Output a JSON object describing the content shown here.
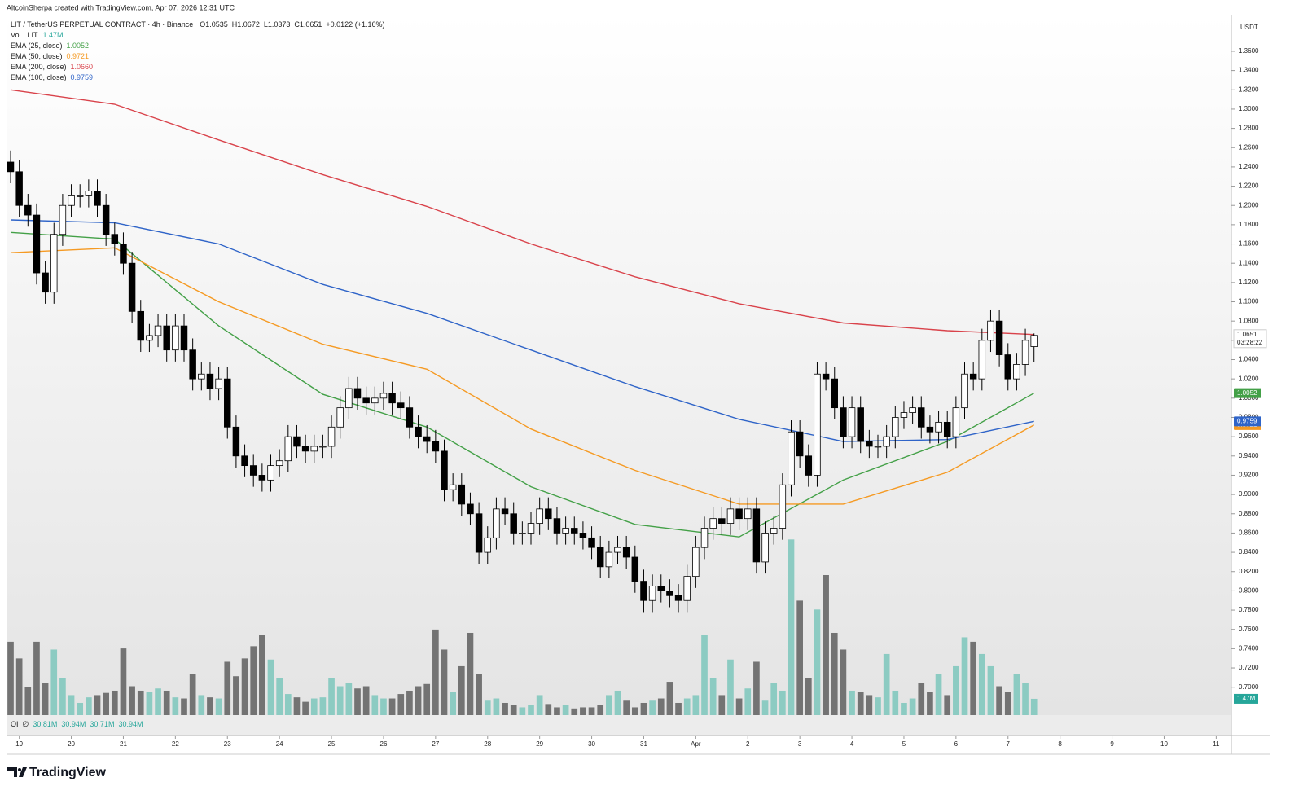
{
  "header": {
    "attribution": "AltcoinSherpa created with TradingView.com, Apr 07, 2026 12:31 UTC"
  },
  "footer": {
    "brand": "TradingView"
  },
  "chart_data": {
    "type": "candlestick",
    "symbol": "LIT / TetherUS PERPETUAL CONTRACT · 4h · Binance",
    "ohlc_keys": [
      "O",
      "H",
      "L",
      "C"
    ],
    "change": "+0.0122 (+1.16%)",
    "y_unit": "USDT",
    "countdown": "03:28:22",
    "up_color": "#ffffff",
    "down_color": "#000000",
    "open": [
      1.245,
      1.235,
      1.2,
      1.19,
      1.13,
      1.11,
      1.17,
      1.2,
      1.21,
      1.21,
      1.215,
      1.2,
      1.17,
      1.16,
      1.14,
      1.09,
      1.06,
      1.065,
      1.075,
      1.05,
      1.075,
      1.05,
      1.02,
      1.025,
      1.01,
      1.02,
      0.97,
      0.94,
      0.93,
      0.92,
      0.915,
      0.93,
      0.935,
      0.96,
      0.95,
      0.945,
      0.95,
      0.95,
      0.97,
      0.99,
      1.01,
      1,
      0.995,
      1,
      1.005,
      0.995,
      0.99,
      0.97,
      0.96,
      0.955,
      0.945,
      0.905,
      0.91,
      0.89,
      0.88,
      0.84,
      0.855,
      0.885,
      0.88,
      0.86,
      0.86,
      0.87,
      0.885,
      0.875,
      0.86,
      0.865,
      0.86,
      0.855,
      0.845,
      0.825,
      0.84,
      0.845,
      0.835,
      0.81,
      0.79,
      0.805,
      0.8,
      0.795,
      0.79,
      0.815,
      0.845,
      0.865,
      0.875,
      0.87,
      0.885,
      0.875,
      0.885,
      0.83,
      0.86,
      0.865,
      0.91,
      0.965,
      0.94,
      0.92,
      1.025,
      1.02,
      0.99,
      0.96,
      0.99,
      0.955,
      0.95,
      0.95,
      0.96,
      0.98,
      0.985,
      0.99,
      0.97,
      0.965,
      0.975,
      0.96,
      0.99,
      1.025,
      1.02,
      1.06,
      1.08,
      1.045,
      1.02,
      1.035,
      1.0535
    ],
    "high": [
      1.257,
      1.247,
      1.212,
      1.202,
      1.142,
      1.182,
      1.212,
      1.222,
      1.222,
      1.227,
      1.227,
      1.212,
      1.182,
      1.172,
      1.152,
      1.102,
      1.077,
      1.087,
      1.087,
      1.087,
      1.087,
      1.062,
      1.037,
      1.037,
      1.032,
      1.032,
      0.982,
      0.952,
      0.942,
      0.932,
      0.942,
      0.947,
      0.972,
      0.972,
      0.962,
      0.962,
      0.962,
      0.982,
      1.002,
      1.022,
      1.022,
      1.012,
      1.012,
      1.017,
      1.017,
      1.007,
      1.002,
      0.982,
      0.972,
      0.967,
      0.957,
      0.922,
      0.922,
      0.902,
      0.892,
      0.867,
      0.897,
      0.897,
      0.892,
      0.872,
      0.882,
      0.897,
      0.897,
      0.887,
      0.877,
      0.877,
      0.872,
      0.867,
      0.857,
      0.852,
      0.857,
      0.857,
      0.847,
      0.822,
      0.817,
      0.817,
      0.812,
      0.807,
      0.827,
      0.857,
      0.877,
      0.887,
      0.887,
      0.897,
      0.897,
      0.897,
      0.897,
      0.872,
      0.877,
      0.922,
      0.977,
      0.977,
      0.952,
      1.037,
      1.037,
      1.032,
      1.002,
      1.002,
      1.002,
      0.967,
      0.962,
      0.972,
      0.992,
      0.997,
      1.002,
      1.002,
      0.982,
      0.987,
      0.987,
      1.002,
      1.037,
      1.037,
      1.072,
      1.092,
      1.092,
      1.057,
      1.047,
      1.072,
      1.0672
    ],
    "low": [
      1.223,
      1.188,
      1.178,
      1.118,
      1.098,
      1.098,
      1.158,
      1.188,
      1.198,
      1.198,
      1.188,
      1.158,
      1.148,
      1.128,
      1.078,
      1.048,
      1.048,
      1.053,
      1.038,
      1.038,
      1.038,
      1.008,
      1.008,
      0.998,
      0.998,
      0.958,
      0.928,
      0.918,
      0.908,
      0.903,
      0.903,
      0.918,
      0.923,
      0.938,
      0.933,
      0.933,
      0.938,
      0.938,
      0.958,
      0.978,
      0.988,
      0.983,
      0.983,
      0.988,
      0.983,
      0.978,
      0.958,
      0.948,
      0.943,
      0.933,
      0.893,
      0.893,
      0.878,
      0.868,
      0.828,
      0.828,
      0.843,
      0.868,
      0.848,
      0.848,
      0.848,
      0.858,
      0.863,
      0.848,
      0.848,
      0.848,
      0.843,
      0.833,
      0.813,
      0.813,
      0.828,
      0.823,
      0.798,
      0.778,
      0.778,
      0.788,
      0.783,
      0.778,
      0.778,
      0.803,
      0.833,
      0.853,
      0.858,
      0.858,
      0.863,
      0.863,
      0.818,
      0.818,
      0.848,
      0.853,
      0.898,
      0.928,
      0.908,
      0.908,
      1.008,
      0.978,
      0.948,
      0.948,
      0.943,
      0.938,
      0.938,
      0.938,
      0.948,
      0.968,
      0.973,
      0.958,
      0.953,
      0.953,
      0.948,
      0.948,
      0.978,
      1.008,
      1.008,
      1.048,
      1.033,
      1.008,
      1.008,
      1.023,
      1.0373
    ],
    "close": [
      1.235,
      1.2,
      1.19,
      1.13,
      1.11,
      1.17,
      1.2,
      1.21,
      1.21,
      1.215,
      1.2,
      1.17,
      1.16,
      1.14,
      1.09,
      1.06,
      1.065,
      1.075,
      1.05,
      1.075,
      1.05,
      1.02,
      1.025,
      1.01,
      1.02,
      0.97,
      0.94,
      0.93,
      0.92,
      0.915,
      0.93,
      0.935,
      0.96,
      0.95,
      0.945,
      0.95,
      0.95,
      0.97,
      0.99,
      1.01,
      1,
      0.995,
      1,
      1.005,
      0.995,
      0.99,
      0.97,
      0.96,
      0.955,
      0.945,
      0.905,
      0.91,
      0.89,
      0.88,
      0.84,
      0.855,
      0.885,
      0.88,
      0.86,
      0.86,
      0.87,
      0.885,
      0.875,
      0.86,
      0.865,
      0.86,
      0.855,
      0.845,
      0.825,
      0.84,
      0.845,
      0.835,
      0.81,
      0.79,
      0.805,
      0.8,
      0.795,
      0.79,
      0.815,
      0.845,
      0.865,
      0.875,
      0.87,
      0.885,
      0.875,
      0.885,
      0.83,
      0.86,
      0.865,
      0.91,
      0.965,
      0.94,
      0.92,
      1.025,
      1.02,
      0.99,
      0.96,
      0.99,
      0.955,
      0.95,
      0.95,
      0.96,
      0.98,
      0.985,
      0.99,
      0.97,
      0.965,
      0.975,
      0.96,
      0.99,
      1.025,
      1.02,
      1.06,
      1.08,
      1.045,
      1.02,
      1.035,
      1.06,
      1.0651
    ],
    "ylim": [
      0.671,
      1.398
    ],
    "yticks": [
      {
        "value": 1.36,
        "label": "1.3600"
      },
      {
        "value": 1.34,
        "label": "1.3400"
      },
      {
        "value": 1.32,
        "label": "1.3200"
      },
      {
        "value": 1.3,
        "label": "1.3000"
      },
      {
        "value": 1.28,
        "label": "1.2800"
      },
      {
        "value": 1.26,
        "label": "1.2600"
      },
      {
        "value": 1.24,
        "label": "1.2400"
      },
      {
        "value": 1.22,
        "label": "1.2200"
      },
      {
        "value": 1.2,
        "label": "1.2000"
      },
      {
        "value": 1.18,
        "label": "1.1800"
      },
      {
        "value": 1.16,
        "label": "1.1600"
      },
      {
        "value": 1.14,
        "label": "1.1400"
      },
      {
        "value": 1.12,
        "label": "1.1200"
      },
      {
        "value": 1.1,
        "label": "1.1000"
      },
      {
        "value": 1.08,
        "label": "1.0800"
      },
      {
        "value": 1.06,
        "label": "1.0600"
      },
      {
        "value": 1.04,
        "label": "1.0400"
      },
      {
        "value": 1.02,
        "label": "1.0200"
      },
      {
        "value": 1,
        "label": "1.0000"
      },
      {
        "value": 0.98,
        "label": "0.9800"
      },
      {
        "value": 0.96,
        "label": "0.9600"
      },
      {
        "value": 0.94,
        "label": "0.9400"
      },
      {
        "value": 0.92,
        "label": "0.9200"
      },
      {
        "value": 0.9,
        "label": "0.9000"
      },
      {
        "value": 0.88,
        "label": "0.8800"
      },
      {
        "value": 0.86,
        "label": "0.8600"
      },
      {
        "value": 0.84,
        "label": "0.8400"
      },
      {
        "value": 0.82,
        "label": "0.8200"
      },
      {
        "value": 0.8,
        "label": "0.8000"
      },
      {
        "value": 0.78,
        "label": "0.7800"
      },
      {
        "value": 0.76,
        "label": "0.7600"
      },
      {
        "value": 0.74,
        "label": "0.7400"
      },
      {
        "value": 0.72,
        "label": "0.7200"
      },
      {
        "value": 0.7,
        "label": "0.7000"
      }
    ],
    "xlim": [
      -0.47,
      140.75
    ],
    "xticks": [
      {
        "value": 1,
        "label": "19"
      },
      {
        "value": 7,
        "label": "20"
      },
      {
        "value": 13,
        "label": "21"
      },
      {
        "value": 19,
        "label": "22"
      },
      {
        "value": 25,
        "label": "23"
      },
      {
        "value": 31,
        "label": "24"
      },
      {
        "value": 37,
        "label": "25"
      },
      {
        "value": 43,
        "label": "26"
      },
      {
        "value": 49,
        "label": "27"
      },
      {
        "value": 55,
        "label": "28"
      },
      {
        "value": 61,
        "label": "29"
      },
      {
        "value": 67,
        "label": "30"
      },
      {
        "value": 73,
        "label": "31"
      },
      {
        "value": 79,
        "label": "Apr"
      },
      {
        "value": 85,
        "label": "2"
      },
      {
        "value": 91,
        "label": "3"
      },
      {
        "value": 97,
        "label": "4"
      },
      {
        "value": 103,
        "label": "5"
      },
      {
        "value": 109,
        "label": "6"
      },
      {
        "value": 115,
        "label": "7"
      },
      {
        "value": 121,
        "label": "8"
      },
      {
        "value": 127,
        "label": "9"
      },
      {
        "value": 133,
        "label": "10"
      },
      {
        "value": 139,
        "label": "11"
      }
    ],
    "ema": [
      {
        "name": "EMA (25, close)",
        "color": "#43a047",
        "last_label": "1.0052",
        "x": [
          0,
          12,
          24,
          36,
          48,
          60,
          72,
          84,
          96,
          108,
          118
        ],
        "values": [
          1.172,
          1.165,
          1.075,
          1.004,
          0.97,
          0.908,
          0.869,
          0.856,
          0.915,
          0.955,
          1.0052
        ]
      },
      {
        "name": "EMA (50, close)",
        "color": "#f59a23",
        "last_label": "0.9721",
        "x": [
          0,
          12,
          24,
          36,
          48,
          60,
          72,
          84,
          96,
          108,
          118
        ],
        "values": [
          1.151,
          1.156,
          1.1,
          1.056,
          1.03,
          0.968,
          0.925,
          0.89,
          0.89,
          0.923,
          0.9721
        ]
      },
      {
        "name": "EMA (200, close)",
        "color": "#d9434b",
        "last_label": "1.0660",
        "x": [
          0,
          12,
          24,
          36,
          48,
          60,
          72,
          84,
          96,
          108,
          118
        ],
        "values": [
          1.32,
          1.305,
          1.268,
          1.232,
          1.199,
          1.16,
          1.126,
          1.098,
          1.078,
          1.07,
          1.066
        ]
      },
      {
        "name": "EMA (100, close)",
        "color": "#2f64c8",
        "last_label": "0.9759",
        "x": [
          0,
          12,
          24,
          36,
          48,
          60,
          72,
          84,
          96,
          108,
          118
        ],
        "values": [
          1.185,
          1.182,
          1.16,
          1.118,
          1.088,
          1.05,
          1.012,
          0.978,
          0.955,
          0.957,
          0.9759
        ]
      }
    ],
    "volume": {
      "name": "Vol · LIT",
      "last_label": "1.47M",
      "up_color": "#8ccbc2",
      "down_color": "#737373",
      "ylim": [
        0,
        63
      ],
      "values": [
        6.6,
        5.1,
        2.5,
        6.6,
        2.9,
        5.9,
        3.3,
        1.8,
        1.1,
        1.6,
        1.8,
        2.0,
        2.2,
        6.0,
        2.6,
        2.2,
        2.1,
        2.4,
        2.2,
        1.6,
        1.5,
        3.7,
        1.8,
        1.6,
        1.5,
        4.8,
        3.5,
        5.1,
        6.2,
        7.2,
        5.0,
        3.3,
        1.9,
        1.6,
        1.2,
        1.5,
        1.6,
        3.3,
        2.6,
        2.9,
        2.4,
        2.6,
        1.8,
        1.5,
        1.5,
        1.9,
        2.2,
        2.6,
        2.8,
        7.7,
        5.9,
        2.1,
        4.4,
        7.4,
        3.7,
        1.3,
        1.5,
        1.1,
        0.9,
        0.7,
        0.9,
        1.8,
        1.0,
        0.7,
        0.9,
        0.6,
        0.7,
        0.7,
        0.9,
        1.8,
        2.2,
        1.3,
        0.7,
        1.1,
        1.3,
        1.5,
        3.0,
        1.1,
        1.5,
        1.8,
        7.2,
        3.3,
        1.8,
        5.0,
        1.5,
        2.4,
        4.8,
        1.3,
        2.9,
        2.2,
        15.8,
        10.3,
        3.3,
        9.5,
        12.6,
        7.4,
        5.9,
        2.2,
        2.1,
        1.8,
        1.6,
        5.5,
        2.2,
        1.1,
        1.5,
        2.9,
        2.1,
        3.7,
        1.8,
        4.4,
        7.0,
        6.6,
        5.5,
        4.4,
        2.6,
        2.1,
        3.7,
        2.9,
        1.47
      ]
    },
    "oi": {
      "name": "OI",
      "symbol": "∅",
      "labels": [
        "30.81M",
        "30.94M",
        "30.71M",
        "30.94M"
      ]
    }
  }
}
